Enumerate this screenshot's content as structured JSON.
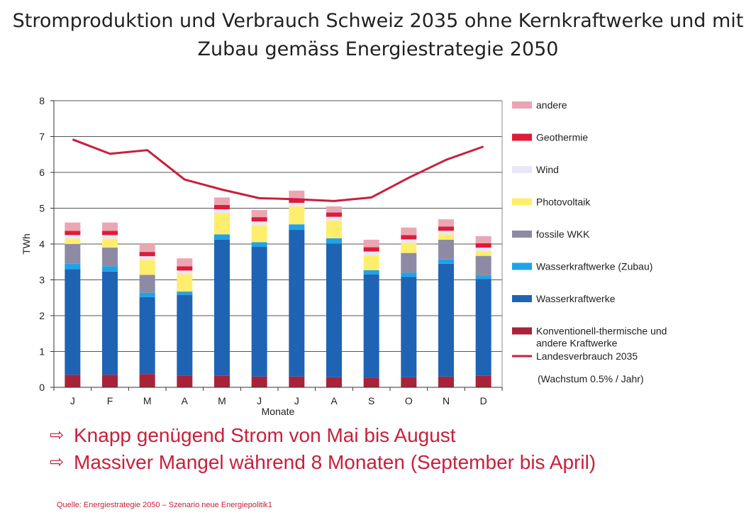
{
  "title": {
    "line1": "Stromproduktion und Verbrauch Schweiz 2035 ohne Kernkraftwerke und mit",
    "line2": "Zubau gemäss Energiestrategie 2050"
  },
  "bullets": [
    "Knapp genügend Strom von Mai bis August",
    "Massiver Mangel während 8 Monaten (September bis April)"
  ],
  "source": "Quelle: Energiestrategie 2050 – Szenario neue Energiepolitik1",
  "chart_data": {
    "type": "bar",
    "stacked": true,
    "categories": [
      "J",
      "F",
      "M",
      "A",
      "M",
      "J",
      "J",
      "A",
      "S",
      "O",
      "N",
      "D"
    ],
    "xlabel": "Monate",
    "ylabel": "TWh",
    "ylim": [
      0,
      8
    ],
    "yticks": [
      0,
      1,
      2,
      3,
      4,
      5,
      6,
      7,
      8
    ],
    "grid": true,
    "legend_position": "right",
    "series": [
      {
        "name": "Konventionell-thermische und andere Kraftwerke",
        "color": "#a8233a",
        "values": [
          0.35,
          0.35,
          0.37,
          0.33,
          0.32,
          0.3,
          0.3,
          0.28,
          0.27,
          0.28,
          0.3,
          0.32
        ]
      },
      {
        "name": "Wasserkraftwerke",
        "color": "#1f63b4",
        "values": [
          2.95,
          2.88,
          2.15,
          2.25,
          3.8,
          3.62,
          4.1,
          3.73,
          2.88,
          2.8,
          3.15,
          2.7
        ]
      },
      {
        "name": "Wasserkraftwerke (Zubau)",
        "color": "#1fa3e6",
        "values": [
          0.15,
          0.15,
          0.12,
          0.08,
          0.15,
          0.13,
          0.15,
          0.15,
          0.12,
          0.12,
          0.12,
          0.1
        ]
      },
      {
        "name": "fossile WKK",
        "color": "#8f8aa4",
        "values": [
          0.55,
          0.52,
          0.5,
          0.02,
          0.0,
          0.0,
          0.0,
          0.0,
          0.0,
          0.55,
          0.55,
          0.55
        ]
      },
      {
        "name": "Photovoltaik",
        "color": "#ffee6e",
        "values": [
          0.15,
          0.25,
          0.42,
          0.48,
          0.6,
          0.48,
          0.5,
          0.5,
          0.42,
          0.28,
          0.15,
          0.13
        ]
      },
      {
        "name": "Wind",
        "color": "#e9e7f6",
        "values": [
          0.1,
          0.1,
          0.1,
          0.1,
          0.1,
          0.1,
          0.1,
          0.1,
          0.1,
          0.1,
          0.1,
          0.1
        ]
      },
      {
        "name": "Geothermie",
        "color": "#dc1c3a",
        "values": [
          0.12,
          0.12,
          0.12,
          0.12,
          0.12,
          0.12,
          0.12,
          0.12,
          0.12,
          0.12,
          0.12,
          0.12
        ]
      },
      {
        "name": "andere",
        "color": "#eba6b3",
        "values": [
          0.23,
          0.23,
          0.22,
          0.22,
          0.21,
          0.2,
          0.22,
          0.17,
          0.21,
          0.21,
          0.2,
          0.2
        ]
      }
    ],
    "line_series": {
      "name": "Landesverbrauch 2035",
      "note": "(Wachstum 0.5% / Jahr)",
      "color": "#c8203a",
      "values": [
        6.92,
        6.52,
        6.62,
        5.8,
        5.52,
        5.28,
        5.25,
        5.2,
        5.3,
        5.85,
        6.35,
        6.72
      ]
    }
  }
}
